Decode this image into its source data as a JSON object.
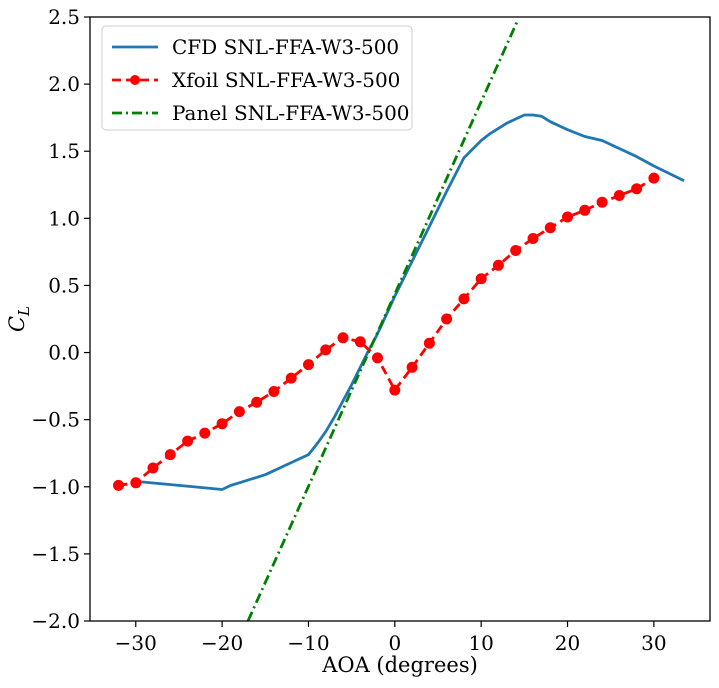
{
  "chart_data": {
    "type": "line",
    "xlabel": "AOA (degrees)",
    "ylabel_base": "C",
    "ylabel_sub": "L",
    "xlim": [
      -35.3,
      36.5
    ],
    "ylim": [
      -2.0,
      2.5
    ],
    "xticks": [
      -30,
      -20,
      -10,
      0,
      10,
      20,
      30
    ],
    "yticks": [
      -2.0,
      -1.5,
      -1.0,
      -0.5,
      0.0,
      0.5,
      1.0,
      1.5,
      2.0,
      2.5
    ],
    "xtick_labels": [
      "−30",
      "−20",
      "−10",
      "0",
      "10",
      "20",
      "30"
    ],
    "ytick_labels": [
      "−2.0",
      "−1.5",
      "−1.0",
      "−0.5",
      "0.0",
      "0.5",
      "1.0",
      "1.5",
      "2.0",
      "2.5"
    ],
    "grid": false,
    "legend_position": "upper-left",
    "series": [
      {
        "name": "CFD SNL-FFA-W3-500",
        "color": "#1f77b4",
        "style": "solid",
        "x": [
          -30,
          -25,
          -20,
          -19,
          -18,
          -17,
          -16,
          -15,
          -14,
          -13,
          -12,
          -11,
          -10,
          -9,
          -8,
          -7,
          -6,
          -5,
          -4,
          -3,
          -2,
          -1,
          0,
          2,
          4,
          6,
          8,
          10,
          11,
          12,
          13,
          14,
          15,
          16,
          17,
          18,
          19,
          20,
          22,
          24,
          26,
          28,
          30,
          33.5
        ],
        "y": [
          -0.96,
          -0.99,
          -1.02,
          -0.99,
          -0.97,
          -0.95,
          -0.93,
          -0.91,
          -0.88,
          -0.85,
          -0.82,
          -0.79,
          -0.76,
          -0.68,
          -0.59,
          -0.48,
          -0.36,
          -0.24,
          -0.11,
          0.02,
          0.14,
          0.28,
          0.42,
          0.68,
          0.94,
          1.2,
          1.45,
          1.58,
          1.63,
          1.67,
          1.71,
          1.74,
          1.77,
          1.77,
          1.76,
          1.72,
          1.69,
          1.66,
          1.61,
          1.58,
          1.52,
          1.46,
          1.39,
          1.28
        ]
      },
      {
        "name": "Xfoil SNL-FFA-W3-500",
        "color": "#ff0000",
        "style": "dashed-marker",
        "x": [
          -32,
          -30,
          -28,
          -26,
          -24,
          -22,
          -20,
          -18,
          -16,
          -14,
          -12,
          -10,
          -8,
          -6,
          -4,
          -2,
          0,
          2,
          4,
          6,
          8,
          10,
          12,
          14,
          16,
          18,
          20,
          22,
          24,
          26,
          28,
          30
        ],
        "y": [
          -0.99,
          -0.97,
          -0.86,
          -0.76,
          -0.66,
          -0.6,
          -0.53,
          -0.44,
          -0.37,
          -0.29,
          -0.19,
          -0.09,
          0.02,
          0.11,
          0.08,
          -0.04,
          -0.28,
          -0.11,
          0.07,
          0.25,
          0.4,
          0.55,
          0.65,
          0.76,
          0.85,
          0.93,
          1.01,
          1.06,
          1.12,
          1.17,
          1.22,
          1.3
        ]
      },
      {
        "name": "Panel SNL-FFA-W3-500",
        "color": "#008000",
        "style": "dashdot",
        "x": [
          -17.0,
          14.2
        ],
        "y": [
          -2.0,
          2.47
        ]
      }
    ]
  }
}
